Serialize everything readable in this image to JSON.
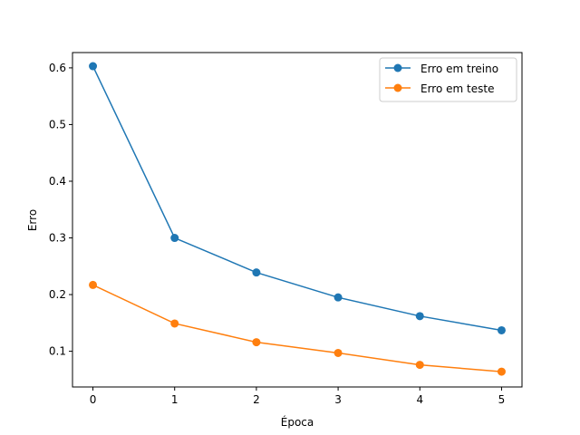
{
  "chart_data": {
    "type": "line",
    "title": "",
    "xlabel": "Época",
    "ylabel": "Erro",
    "x": [
      0,
      1,
      2,
      3,
      4,
      5
    ],
    "xticks": [
      "0",
      "1",
      "2",
      "3",
      "4",
      "5"
    ],
    "yticks": [
      "0.1",
      "0.2",
      "0.3",
      "0.4",
      "0.5",
      "0.6"
    ],
    "xlim": [
      -0.25,
      5.25
    ],
    "ylim": [
      0.037,
      0.627
    ],
    "grid": false,
    "legend_position": "top-right",
    "series": [
      {
        "name": "Erro em treino",
        "color": "#1f77b4",
        "marker": "circle",
        "values": [
          0.603,
          0.3,
          0.239,
          0.195,
          0.162,
          0.137
        ]
      },
      {
        "name": "Erro em teste",
        "color": "#ff7f0e",
        "marker": "circle",
        "values": [
          0.217,
          0.149,
          0.116,
          0.097,
          0.076,
          0.064
        ]
      }
    ]
  }
}
